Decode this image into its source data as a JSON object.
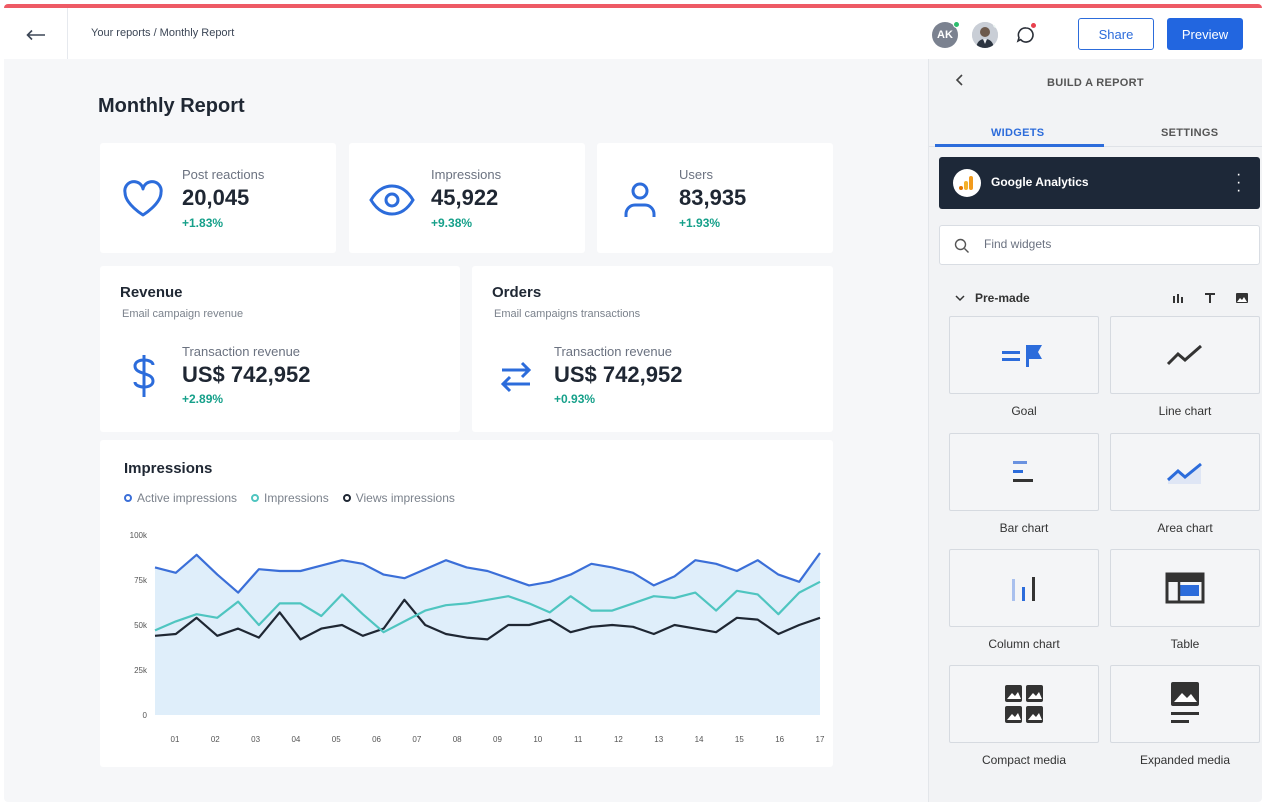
{
  "topbar": {
    "breadcrumb": "Your reports / Monthly Report",
    "avatar_initials": "AK",
    "share_label": "Share",
    "preview_label": "Preview",
    "colors": {
      "accent": "#2266e0",
      "topline": "#ee5a65",
      "online": "#2dbd6e",
      "notify": "#e8414e"
    }
  },
  "report": {
    "title": "Monthly Report",
    "stats": [
      {
        "label": "Post reactions",
        "value": "20,045",
        "change": "+1.83%",
        "icon": "heart-icon"
      },
      {
        "label": "Impressions",
        "value": "45,922",
        "change": "+9.38%",
        "icon": "eye-icon"
      },
      {
        "label": "Users",
        "value": "83,935",
        "change": "+1.93%",
        "icon": "user-icon"
      }
    ],
    "revenue": {
      "title": "Revenue",
      "subtitle": "Email campaign revenue",
      "label": "Transaction revenue",
      "value": "US$ 742,952",
      "change": "+2.89%",
      "icon": "dollar-icon"
    },
    "orders": {
      "title": "Orders",
      "subtitle": "Email campaigns transactions",
      "label": "Transaction revenue",
      "value": "US$ 742,952",
      "change": "+0.93%",
      "icon": "exchange-arrows-icon"
    }
  },
  "chart_data": {
    "type": "line",
    "title": "Impressions",
    "xlabel": "",
    "ylabel": "",
    "x": [
      "01",
      "",
      "02",
      "",
      "03",
      "",
      "04",
      "",
      "05",
      "",
      "06",
      "",
      "07",
      "",
      "08",
      "",
      "09",
      "",
      "10",
      "",
      "11",
      "",
      "12",
      "",
      "13",
      "",
      "14",
      "",
      "15",
      "",
      "16",
      "",
      "17"
    ],
    "x_ticks": [
      "01",
      "02",
      "03",
      "04",
      "05",
      "06",
      "07",
      "08",
      "09",
      "10",
      "11",
      "12",
      "13",
      "14",
      "15",
      "16",
      "17"
    ],
    "y_ticks": [
      "100k",
      "75k",
      "50k",
      "25k",
      "0"
    ],
    "ylim": [
      0,
      100000
    ],
    "grid": false,
    "legend_position": "top-left",
    "series": [
      {
        "name": "Active impressions",
        "color": "#3b6fd8",
        "values": [
          82000,
          79000,
          89000,
          78000,
          68000,
          81000,
          80000,
          80000,
          83000,
          86000,
          84000,
          78000,
          76000,
          81000,
          86000,
          82000,
          80000,
          76000,
          72000,
          74000,
          78000,
          84000,
          82000,
          79000,
          72000,
          77000,
          86000,
          84000,
          80000,
          86000,
          78000,
          74000,
          90000
        ]
      },
      {
        "name": "Impressions",
        "color": "#4fc5c0",
        "values": [
          47000,
          52000,
          56000,
          54000,
          63000,
          50000,
          62000,
          62000,
          55000,
          67000,
          56000,
          46000,
          52000,
          58000,
          61000,
          62000,
          64000,
          66000,
          62000,
          57000,
          66000,
          58000,
          58000,
          62000,
          66000,
          65000,
          68000,
          58000,
          69000,
          67000,
          56000,
          68000,
          74000
        ]
      },
      {
        "name": "Views impressions",
        "color": "#1f2733",
        "values": [
          44000,
          45000,
          54000,
          44000,
          48000,
          43000,
          57000,
          42000,
          48000,
          50000,
          44000,
          48000,
          64000,
          50000,
          45000,
          43000,
          42000,
          50000,
          50000,
          53000,
          46000,
          49000,
          50000,
          49000,
          45000,
          50000,
          48000,
          46000,
          54000,
          53000,
          45000,
          50000,
          54000
        ]
      }
    ],
    "area_fill_color": "#dfeefa"
  },
  "panel": {
    "title": "BUILD A REPORT",
    "tabs": [
      "WIDGETS",
      "SETTINGS"
    ],
    "integration": "Google Analytics",
    "search_placeholder": "Find widgets",
    "section": "Pre-made",
    "widgets": [
      {
        "label": "Goal",
        "icon": "goal-flag-icon"
      },
      {
        "label": "Line chart",
        "icon": "line-chart-icon"
      },
      {
        "label": "Bar chart",
        "icon": "bar-chart-icon"
      },
      {
        "label": "Area chart",
        "icon": "area-chart-icon"
      },
      {
        "label": "Column chart",
        "icon": "column-chart-icon"
      },
      {
        "label": "Table",
        "icon": "table-icon"
      },
      {
        "label": "Compact media",
        "icon": "compact-media-icon"
      },
      {
        "label": "Expanded media",
        "icon": "expanded-media-icon"
      }
    ]
  }
}
